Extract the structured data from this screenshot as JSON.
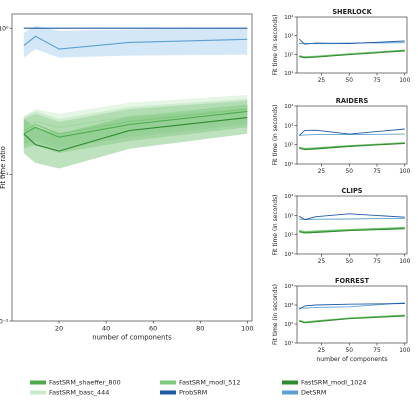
{
  "chart_data": [
    {
      "type": "line",
      "title": "",
      "xlabel": "number of components",
      "ylabel": "Fit time ratio",
      "yscale": "log",
      "xlim": [
        0,
        102
      ],
      "ylim": [
        0.01,
        1.25
      ],
      "xticks": [
        20,
        40,
        60,
        80,
        100
      ],
      "yticks": [
        {
          "v": 1,
          "label": "10⁰"
        },
        {
          "v": 0.1,
          "label": "10⁻¹"
        },
        {
          "v": 0.01,
          "label": "10⁻²"
        }
      ],
      "grid": false,
      "series": [
        {
          "name": "ProbSRM",
          "color": "#1f5aa6",
          "x": [
            5,
            10,
            20,
            50,
            100
          ],
          "y": [
            1,
            1,
            1,
            1,
            1
          ]
        },
        {
          "name": "DetSRM",
          "color": "#5b9fd3",
          "band_color": "#9ec9ea",
          "x": [
            5,
            10,
            20,
            50,
            100
          ],
          "y": [
            0.76,
            0.88,
            0.72,
            0.8,
            0.84
          ],
          "lower": [
            0.63,
            0.72,
            0.63,
            0.65,
            0.66
          ],
          "upper": [
            0.93,
            1.04,
            0.96,
            0.98,
            1.0
          ]
        },
        {
          "name": "FastSRM_shaeffer_800",
          "color": "#4daa4d",
          "band_color": "#8fcc8f",
          "x": [
            5,
            10,
            20,
            50,
            100
          ],
          "y": [
            0.19,
            0.21,
            0.18,
            0.22,
            0.27
          ],
          "lower": [
            0.15,
            0.16,
            0.14,
            0.17,
            0.21
          ],
          "upper": [
            0.24,
            0.26,
            0.23,
            0.28,
            0.32
          ]
        },
        {
          "name": "FastSRM_basc_444",
          "color": "#9fd89f",
          "band_color": "#c8ebc8",
          "x": [
            5,
            10,
            20,
            50,
            100
          ],
          "y": [
            0.2,
            0.23,
            0.21,
            0.25,
            0.29
          ],
          "lower": [
            0.16,
            0.18,
            0.16,
            0.19,
            0.23
          ],
          "upper": [
            0.25,
            0.28,
            0.26,
            0.31,
            0.35
          ]
        },
        {
          "name": "FastSRM_modl_512",
          "color": "#7fc77f",
          "band_color": "#b3e0b3",
          "x": [
            5,
            10,
            20,
            50,
            100
          ],
          "y": [
            0.2,
            0.22,
            0.19,
            0.23,
            0.28
          ],
          "lower": [
            0.16,
            0.17,
            0.15,
            0.18,
            0.22
          ],
          "upper": [
            0.25,
            0.27,
            0.24,
            0.29,
            0.33
          ]
        },
        {
          "name": "FastSRM_modl_1024",
          "color": "#2e8b2e",
          "band_color": "#6fbf6f",
          "x": [
            5,
            10,
            20,
            50,
            100
          ],
          "y": [
            0.19,
            0.16,
            0.145,
            0.2,
            0.245
          ],
          "lower": [
            0.14,
            0.12,
            0.11,
            0.15,
            0.19
          ],
          "upper": [
            0.24,
            0.21,
            0.19,
            0.25,
            0.3
          ]
        }
      ]
    },
    {
      "type": "line",
      "title": "SHERLOCK",
      "xlabel": "",
      "ylabel": "Fit time (in seconds)",
      "yscale": "log",
      "xlim": [
        3,
        102
      ],
      "ylim": [
        10,
        10000
      ],
      "xticks": [
        25,
        50,
        75,
        100
      ],
      "yticks": [
        {
          "v": 10000,
          "label": "10⁴"
        },
        {
          "v": 1000,
          "label": "10³"
        },
        {
          "v": 100,
          "label": "10²"
        },
        {
          "v": 10,
          "label": "10¹"
        }
      ],
      "series": [
        {
          "name": "ProbSRM",
          "color": "#1f5aa6",
          "x": [
            5,
            10,
            20,
            50,
            100
          ],
          "y": [
            650,
            350,
            400,
            380,
            520
          ]
        },
        {
          "name": "DetSRM",
          "color": "#5b9fd3",
          "x": [
            5,
            10,
            20,
            50,
            100
          ],
          "y": [
            380,
            390,
            370,
            400,
            420
          ]
        },
        {
          "name": "FastSRM_shaeffer_800",
          "color": "#4daa4d",
          "x": [
            5,
            10,
            20,
            50,
            100
          ],
          "y": [
            80,
            70,
            75,
            100,
            160
          ]
        },
        {
          "name": "FastSRM_basc_444",
          "color": "#9fd89f",
          "x": [
            5,
            10,
            20,
            50,
            100
          ],
          "y": [
            85,
            75,
            80,
            110,
            170
          ]
        },
        {
          "name": "FastSRM_modl_512",
          "color": "#7fc77f",
          "x": [
            5,
            10,
            20,
            50,
            100
          ],
          "y": [
            82,
            72,
            78,
            105,
            165
          ]
        },
        {
          "name": "FastSRM_modl_1024",
          "color": "#2e8b2e",
          "x": [
            5,
            10,
            20,
            50,
            100
          ],
          "y": [
            75,
            65,
            70,
            95,
            150
          ]
        }
      ]
    },
    {
      "type": "line",
      "title": "RAIDERS",
      "xlabel": "",
      "ylabel": "Fit time (in seconds)",
      "yscale": "log",
      "xlim": [
        3,
        102
      ],
      "ylim": [
        10,
        10000
      ],
      "xticks": [
        25,
        50,
        75,
        100
      ],
      "yticks": [
        {
          "v": 10000,
          "label": "10⁴"
        },
        {
          "v": 1000,
          "label": "10³"
        },
        {
          "v": 100,
          "label": "10²"
        },
        {
          "v": 10,
          "label": "10¹"
        }
      ],
      "series": [
        {
          "name": "ProbSRM",
          "color": "#1f5aa6",
          "x": [
            5,
            10,
            20,
            50,
            100
          ],
          "y": [
            300,
            550,
            560,
            350,
            650
          ]
        },
        {
          "name": "DetSRM",
          "color": "#5b9fd3",
          "x": [
            5,
            10,
            20,
            50,
            100
          ],
          "y": [
            300,
            320,
            330,
            330,
            350
          ]
        },
        {
          "name": "FastSRM_shaeffer_800",
          "color": "#4daa4d",
          "x": [
            5,
            10,
            20,
            50,
            100
          ],
          "y": [
            70,
            60,
            65,
            85,
            120
          ]
        },
        {
          "name": "FastSRM_basc_444",
          "color": "#9fd89f",
          "x": [
            5,
            10,
            20,
            50,
            100
          ],
          "y": [
            75,
            65,
            70,
            90,
            130
          ]
        },
        {
          "name": "FastSRM_modl_512",
          "color": "#7fc77f",
          "x": [
            5,
            10,
            20,
            50,
            100
          ],
          "y": [
            72,
            62,
            68,
            88,
            125
          ]
        },
        {
          "name": "FastSRM_modl_1024",
          "color": "#2e8b2e",
          "x": [
            5,
            10,
            20,
            50,
            100
          ],
          "y": [
            65,
            55,
            60,
            80,
            115
          ]
        }
      ]
    },
    {
      "type": "line",
      "title": "CLIPS",
      "xlabel": "",
      "ylabel": "Fit time (in seconds)",
      "yscale": "log",
      "xlim": [
        3,
        102
      ],
      "ylim": [
        10,
        10000
      ],
      "xticks": [
        25,
        50,
        75,
        100
      ],
      "yticks": [
        {
          "v": 10000,
          "label": "10⁴"
        },
        {
          "v": 1000,
          "label": "10³"
        },
        {
          "v": 100,
          "label": "10²"
        },
        {
          "v": 10,
          "label": "10¹"
        }
      ],
      "series": [
        {
          "name": "ProbSRM",
          "color": "#1f5aa6",
          "x": [
            5,
            10,
            20,
            50,
            100
          ],
          "y": [
            900,
            600,
            850,
            1200,
            800
          ]
        },
        {
          "name": "DetSRM",
          "color": "#5b9fd3",
          "x": [
            5,
            10,
            20,
            50,
            100
          ],
          "y": [
            650,
            600,
            630,
            650,
            700
          ]
        },
        {
          "name": "FastSRM_shaeffer_800",
          "color": "#4daa4d",
          "x": [
            5,
            10,
            20,
            50,
            100
          ],
          "y": [
            150,
            130,
            140,
            170,
            220
          ]
        },
        {
          "name": "FastSRM_basc_444",
          "color": "#9fd89f",
          "x": [
            5,
            10,
            20,
            50,
            100
          ],
          "y": [
            170,
            150,
            160,
            190,
            240
          ]
        },
        {
          "name": "FastSRM_modl_512",
          "color": "#7fc77f",
          "x": [
            5,
            10,
            20,
            50,
            100
          ],
          "y": [
            160,
            140,
            150,
            180,
            230
          ]
        },
        {
          "name": "FastSRM_modl_1024",
          "color": "#2e8b2e",
          "x": [
            5,
            10,
            20,
            50,
            100
          ],
          "y": [
            140,
            120,
            130,
            160,
            200
          ]
        }
      ]
    },
    {
      "type": "line",
      "title": "FORREST",
      "xlabel": "number of components",
      "ylabel": "Fit time (in seconds)",
      "yscale": "log",
      "xlim": [
        3,
        102
      ],
      "ylim": [
        10,
        10000
      ],
      "xticks": [
        25,
        50,
        75,
        100
      ],
      "yticks": [
        {
          "v": 10000,
          "label": "10⁴"
        },
        {
          "v": 1000,
          "label": "10³"
        },
        {
          "v": 100,
          "label": "10²"
        },
        {
          "v": 10,
          "label": "10¹"
        }
      ],
      "series": [
        {
          "name": "ProbSRM",
          "color": "#1f5aa6",
          "x": [
            5,
            10,
            20,
            50,
            100
          ],
          "y": [
            600,
            900,
            1000,
            1100,
            1200
          ]
        },
        {
          "name": "DetSRM",
          "color": "#5b9fd3",
          "x": [
            5,
            10,
            20,
            50,
            100
          ],
          "y": [
            700,
            680,
            750,
            800,
            1300
          ]
        },
        {
          "name": "FastSRM_shaeffer_800",
          "color": "#4daa4d",
          "x": [
            5,
            10,
            20,
            50,
            100
          ],
          "y": [
            150,
            120,
            140,
            200,
            280
          ]
        },
        {
          "name": "FastSRM_basc_444",
          "color": "#9fd89f",
          "x": [
            5,
            10,
            20,
            50,
            100
          ],
          "y": [
            160,
            130,
            150,
            210,
            300
          ]
        },
        {
          "name": "FastSRM_modl_512",
          "color": "#7fc77f",
          "x": [
            5,
            10,
            20,
            50,
            100
          ],
          "y": [
            155,
            125,
            145,
            205,
            290
          ]
        },
        {
          "name": "FastSRM_modl_1024",
          "color": "#2e8b2e",
          "x": [
            5,
            10,
            20,
            50,
            100
          ],
          "y": [
            140,
            115,
            130,
            190,
            260
          ]
        }
      ]
    }
  ],
  "legend": {
    "placement": "bottom",
    "entries": [
      {
        "label": "FastSRM_shaeffer_800",
        "color": "#4daa4d"
      },
      {
        "label": "FastSRM_modl_512",
        "color": "#7fc77f"
      },
      {
        "label": "FastSRM_modl_1024",
        "color": "#2e8b2e"
      },
      {
        "label": "FastSRM_basc_444",
        "color": "#c8ebc8"
      },
      {
        "label": "ProbSRM",
        "color": "#1f5aa6"
      },
      {
        "label": "DetSRM",
        "color": "#5b9fd3"
      }
    ]
  }
}
